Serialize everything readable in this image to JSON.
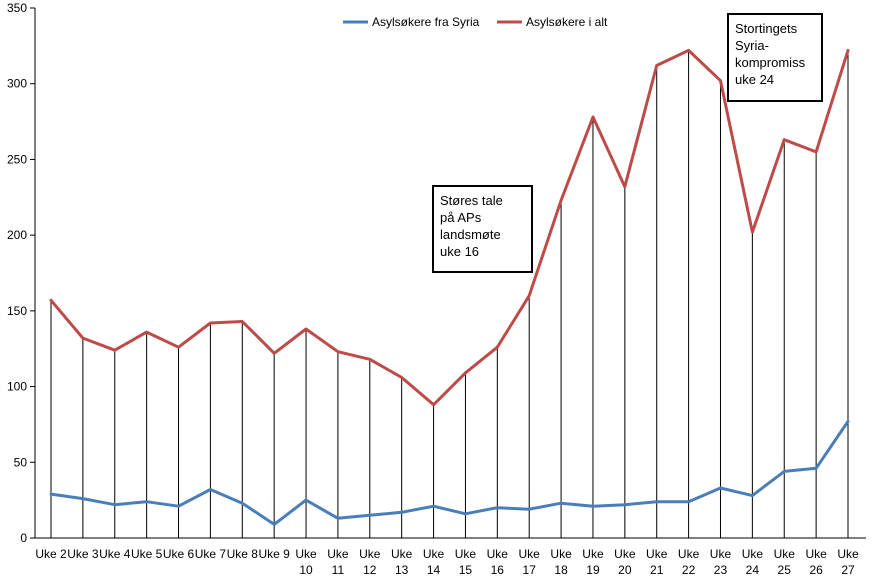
{
  "chart_data": {
    "type": "line",
    "categories": [
      [
        "Uke 2"
      ],
      [
        "Uke 3"
      ],
      [
        "Uke 4"
      ],
      [
        "Uke 5"
      ],
      [
        "Uke 6"
      ],
      [
        "Uke 7"
      ],
      [
        "Uke 8"
      ],
      [
        "Uke 9"
      ],
      [
        "Uke",
        "10"
      ],
      [
        "Uke",
        "11"
      ],
      [
        "Uke",
        "12"
      ],
      [
        "Uke",
        "13"
      ],
      [
        "Uke",
        "14"
      ],
      [
        "Uke",
        "15"
      ],
      [
        "Uke",
        "16"
      ],
      [
        "Uke",
        "17"
      ],
      [
        "Uke",
        "18"
      ],
      [
        "Uke",
        "19"
      ],
      [
        "Uke",
        "20"
      ],
      [
        "Uke",
        "21"
      ],
      [
        "Uke",
        "22"
      ],
      [
        "Uke",
        "23"
      ],
      [
        "Uke",
        "24"
      ],
      [
        "Uke",
        "25"
      ],
      [
        "Uke",
        "26"
      ],
      [
        "Uke",
        "27"
      ]
    ],
    "series": [
      {
        "name": "Asylsøkere fra Syria",
        "color": "#4a7ebb",
        "values": [
          29,
          26,
          22,
          24,
          21,
          32,
          23,
          9,
          25,
          13,
          15,
          17,
          21,
          16,
          20,
          19,
          23,
          21,
          22,
          24,
          24,
          33,
          28,
          44,
          46,
          77
        ]
      },
      {
        "name": "Asylsøkere i alt",
        "color": "#be4b48",
        "values": [
          157,
          132,
          124,
          136,
          126,
          142,
          143,
          122,
          138,
          123,
          118,
          106,
          88,
          109,
          126,
          160,
          223,
          278,
          232,
          312,
          322,
          302,
          202,
          263,
          255,
          322
        ]
      }
    ],
    "yticks": [
      0,
      50,
      100,
      150,
      200,
      250,
      300,
      350
    ],
    "ylim": [
      0,
      350
    ],
    "drop_lines": true,
    "legend_position": "top-center",
    "annotations": [
      {
        "id": "ann-stores-tale",
        "lines": [
          "Støres tale",
          "på APs",
          "landsmøte",
          "uke 16"
        ]
      },
      {
        "id": "ann-stortingets",
        "lines": [
          "Stortingets",
          "Syria-",
          "kompromiss",
          "uke 24"
        ]
      }
    ]
  }
}
